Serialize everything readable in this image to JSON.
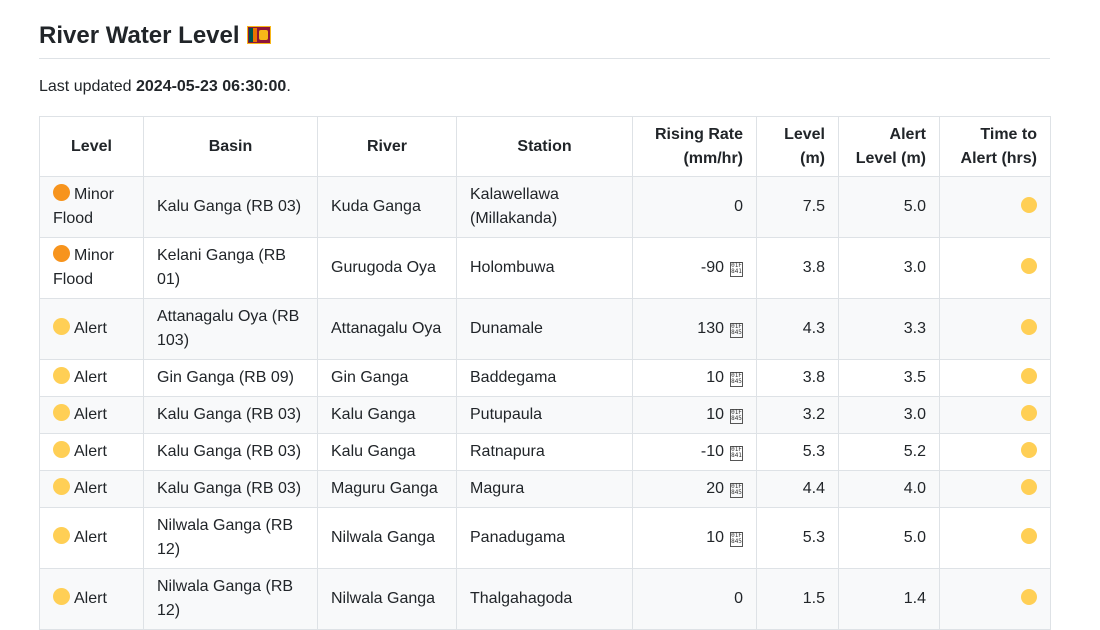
{
  "page": {
    "title": "River Water Level",
    "flag_icon": "sri-lanka-flag-icon",
    "updated_prefix": "Last updated ",
    "updated_time": "2024-05-23 06:30:00",
    "updated_suffix": "."
  },
  "colors": {
    "minor_flood": "#f7941d",
    "alert": "#ffcf55"
  },
  "table": {
    "headers": [
      "Level",
      "Basin",
      "River",
      "Station",
      "Rising Rate (mm/hr)",
      "Level (m)",
      "Alert Level (m)",
      "Time to Alert (hrs)"
    ],
    "rows": [
      {
        "level": "Minor Flood",
        "status": "minor_flood",
        "basin": "Kalu Ganga (RB 03)",
        "river": "Kuda Ganga",
        "station": "Kalawellawa (Millakanda)",
        "rate": "0",
        "trend": "",
        "water_level": "7.5",
        "alert_level": "5.0"
      },
      {
        "level": "Minor Flood",
        "status": "minor_flood",
        "basin": "Kelani Ganga (RB 01)",
        "river": "Gurugoda Oya",
        "station": "Holombuwa",
        "rate": "-90",
        "trend": "down",
        "water_level": "3.8",
        "alert_level": "3.0"
      },
      {
        "level": "Alert",
        "status": "alert",
        "basin": "Attanagalu Oya (RB 103)",
        "river": "Attanagalu Oya",
        "station": "Dunamale",
        "rate": "130",
        "trend": "up",
        "water_level": "4.3",
        "alert_level": "3.3"
      },
      {
        "level": "Alert",
        "status": "alert",
        "basin": "Gin Ganga (RB 09)",
        "river": "Gin Ganga",
        "station": "Baddegama",
        "rate": "10",
        "trend": "up",
        "water_level": "3.8",
        "alert_level": "3.5"
      },
      {
        "level": "Alert",
        "status": "alert",
        "basin": "Kalu Ganga (RB 03)",
        "river": "Kalu Ganga",
        "station": "Putupaula",
        "rate": "10",
        "trend": "up",
        "water_level": "3.2",
        "alert_level": "3.0"
      },
      {
        "level": "Alert",
        "status": "alert",
        "basin": "Kalu Ganga (RB 03)",
        "river": "Kalu Ganga",
        "station": "Ratnapura",
        "rate": "-10",
        "trend": "down",
        "water_level": "5.3",
        "alert_level": "5.2"
      },
      {
        "level": "Alert",
        "status": "alert",
        "basin": "Kalu Ganga (RB 03)",
        "river": "Maguru Ganga",
        "station": "Magura",
        "rate": "20",
        "trend": "up",
        "water_level": "4.4",
        "alert_level": "4.0"
      },
      {
        "level": "Alert",
        "status": "alert",
        "basin": "Nilwala Ganga (RB 12)",
        "river": "Nilwala Ganga",
        "station": "Panadugama",
        "rate": "10",
        "trend": "up",
        "water_level": "5.3",
        "alert_level": "5.0"
      },
      {
        "level": "Alert",
        "status": "alert",
        "basin": "Nilwala Ganga (RB 12)",
        "river": "Nilwala Ganga",
        "station": "Thalgahagoda",
        "rate": "0",
        "trend": "",
        "water_level": "1.5",
        "alert_level": "1.4"
      }
    ]
  }
}
